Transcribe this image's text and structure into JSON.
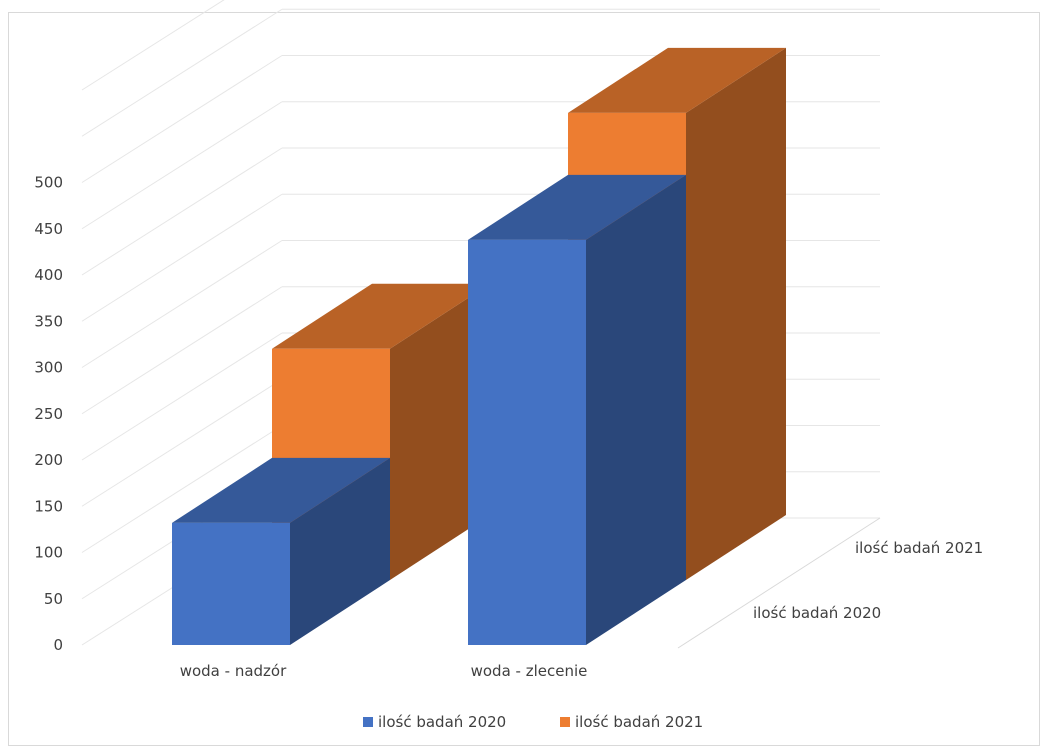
{
  "chart_data": {
    "type": "bar",
    "subtype": "3d-column",
    "categories": [
      "woda - nadzór",
      "woda - zlecenie"
    ],
    "series": [
      {
        "name": "ilość badań 2020",
        "values": [
          132,
          438
        ],
        "color": "#4472C4"
      },
      {
        "name": "ilość badań 2021",
        "values": [
          250,
          505
        ],
        "color": "#ED7D31"
      }
    ],
    "yticks": [
      "0",
      "50",
      "100",
      "150",
      "200",
      "250",
      "300",
      "350",
      "400",
      "450",
      "500"
    ],
    "ylim": [
      0,
      500
    ],
    "depth_labels": [
      "ilość badań 2021",
      "ilość badań 2020"
    ],
    "legend": {
      "position": "bottom",
      "items": [
        "ilość badań 2020",
        "ilość badań 2021"
      ]
    },
    "grid": true
  }
}
